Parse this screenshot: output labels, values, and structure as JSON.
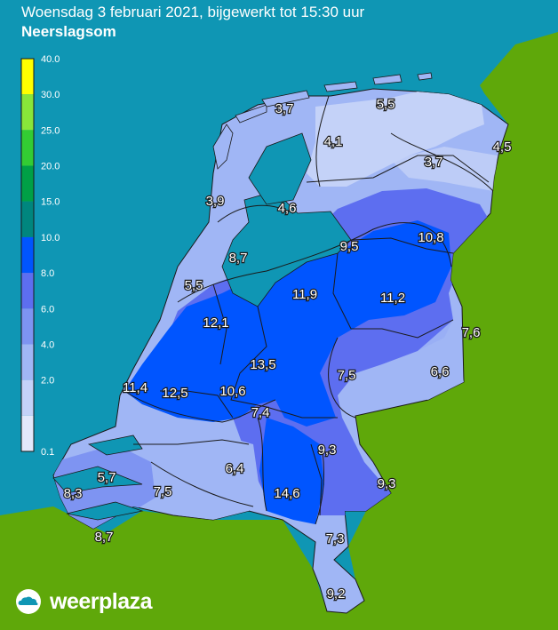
{
  "header": {
    "title": "Woensdag 3 februari 2021, bijgewerkt tot 15:30 uur",
    "subtitle": "Neerslagsom"
  },
  "legend": {
    "bands": [
      {
        "label": "40.0",
        "color": "#ffff00"
      },
      {
        "label": "30.0",
        "color": "#88e63a"
      },
      {
        "label": "25.0",
        "color": "#33cc33"
      },
      {
        "label": "20.0",
        "color": "#00a046"
      },
      {
        "label": "15.0",
        "color": "#00867e"
      },
      {
        "label": "10.0",
        "color": "#0055ff"
      },
      {
        "label": "8.0",
        "color": "#5d6ef0"
      },
      {
        "label": "6.0",
        "color": "#7e94f2"
      },
      {
        "label": "4.0",
        "color": "#a0b6f5"
      },
      {
        "label": "2.0",
        "color": "#c4d2f8"
      },
      {
        "label": "0.1",
        "color": "#e2e8fb"
      }
    ]
  },
  "map": {
    "colors": {
      "sea": "#0f96b4",
      "land_outside": "#5fa80a",
      "water_inland": "#0f96b4"
    },
    "values": [
      "3,7",
      "5,5",
      "4,1",
      "4,5",
      "3,7",
      "3,9",
      "4,6",
      "9,5",
      "10,8",
      "8,7",
      "5,5",
      "11,9",
      "11,2",
      "12,1",
      "7,6",
      "13,5",
      "7,5",
      "6,6",
      "11,4",
      "12,5",
      "10,6",
      "7,4",
      "9,3",
      "5,7",
      "6,4",
      "9,3",
      "8,3",
      "7,5",
      "14,6",
      "8,7",
      "7,3",
      "9,2"
    ]
  },
  "brand": {
    "name": "weerplaza",
    "logo_icon": "cloud-icon"
  }
}
